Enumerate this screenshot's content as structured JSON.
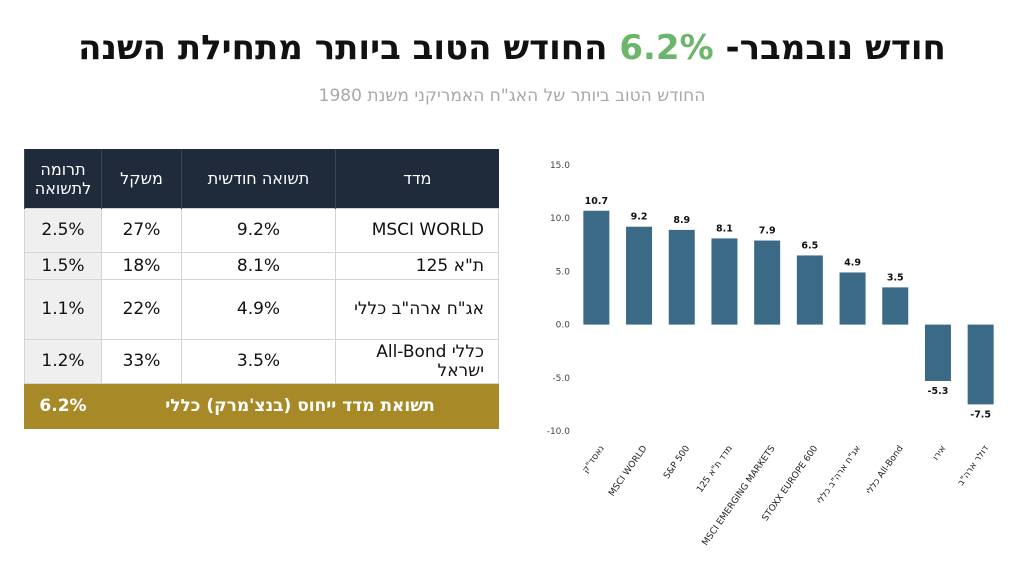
{
  "header": {
    "title_prefix": "חודש נובמבר- ",
    "title_accent": "6.2%",
    "title_suffix": " החודש הטוב ביותר מתחילת השנה",
    "subtitle": "החודש הטוב ביותר של האג\"ח האמריקני משנת 1980",
    "accent_color": "#6bb66b"
  },
  "table": {
    "headers": [
      "מדד",
      "תשואה חודשית",
      "משקל",
      "תרומה לתשואה"
    ],
    "rows": [
      [
        "MSCI WORLD",
        "9.2%",
        "27%",
        "2.5%"
      ],
      [
        "ת\"א 125",
        "8.1%",
        "18%",
        "1.5%"
      ],
      [
        "אג\"ח ארה\"ב כללי",
        "4.9%",
        "22%",
        "1.1%"
      ],
      [
        "כללי All-Bond ישראל",
        "3.5%",
        "33%",
        "1.2%"
      ]
    ],
    "total_label": "תשואת מדד ייחוס (בנצ'מרק) כללי",
    "total_value": "6.2%",
    "header_color": "#1f2a3a",
    "total_color": "#a78a27"
  },
  "chart_data": {
    "type": "bar",
    "categories": [
      "נאסד\"ק",
      "MSCI WORLD",
      "S&P 500",
      "מדד ת\"א 125",
      "MSCI EMERGING MARKETS",
      "STOXX EUROPE 600",
      "אג\"ח ארה\"ב כללי",
      "כללי All-Bond",
      "אירו",
      "דולר ארה\"ב"
    ],
    "values": [
      10.7,
      9.2,
      8.9,
      8.1,
      7.9,
      6.5,
      4.9,
      3.5,
      -5.3,
      -7.5
    ],
    "data_labels": [
      "10.7",
      "9.2",
      "8.9",
      "8.1",
      "7.9",
      "6.5",
      "4.9",
      "3.5",
      "-5.3",
      "-7.5"
    ],
    "y_ticks": [
      "15.0",
      "10.0",
      "5.0",
      "0.0",
      "-5.0",
      "-10.0"
    ],
    "ylim": [
      -10,
      15
    ],
    "grid": false,
    "bar_color": "#3b6a87"
  }
}
